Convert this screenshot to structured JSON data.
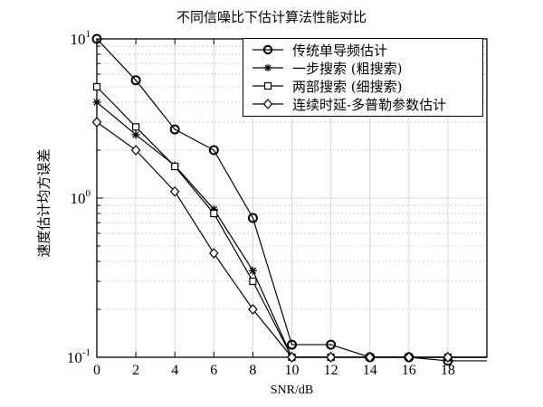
{
  "chart_data": {
    "type": "line",
    "title": "不同信噪比下估计算法性能对比",
    "xlabel": "SNR/dB",
    "ylabel": "速度估计均方误差",
    "yscale": "log",
    "xlim": [
      0,
      20
    ],
    "ylim": [
      0.1,
      10
    ],
    "xticks": [
      0,
      2,
      4,
      6,
      8,
      10,
      12,
      14,
      16,
      18
    ],
    "yticks": [
      "10^-1",
      "10^0",
      "10^1"
    ],
    "grid": true,
    "legend_position": "upper right",
    "x": [
      0,
      2,
      4,
      6,
      8,
      10,
      12,
      14,
      16,
      18
    ],
    "series": [
      {
        "name": "传统单导频估计",
        "marker": "circle",
        "values": [
          10,
          5.5,
          2.7,
          2.0,
          0.75,
          0.12,
          0.12,
          0.1,
          0.1,
          0.095
        ],
        "tail": 0.095
      },
      {
        "name": "一步搜索 (粗搜索)",
        "marker": "star",
        "values": [
          4.0,
          2.5,
          1.6,
          0.85,
          0.35,
          0.1,
          0.1,
          0.1,
          0.1,
          0.1
        ],
        "tail": 0.1
      },
      {
        "name": "两部搜索 (细搜索)",
        "marker": "square",
        "values": [
          5.0,
          2.8,
          1.58,
          0.8,
          0.3,
          0.1,
          0.1,
          0.1,
          0.1,
          0.1
        ],
        "tail": 0.1
      },
      {
        "name": "连续时延-多普勒参数估计",
        "marker": "diamond",
        "values": [
          3.0,
          2.0,
          1.1,
          0.45,
          0.2,
          0.1,
          0.1,
          0.1,
          0.1,
          0.1
        ],
        "tail": 0.1
      }
    ]
  },
  "labels": {
    "title": "不同信噪比下估计算法性能对比",
    "xlabel": "SNR/dB",
    "ylabel": "速度估计均方误差",
    "legend": [
      "传统单导频估计",
      "一步搜索 (粗搜索)",
      "两部搜索 (细搜索)",
      "连续时延-多普勒参数估计"
    ]
  }
}
